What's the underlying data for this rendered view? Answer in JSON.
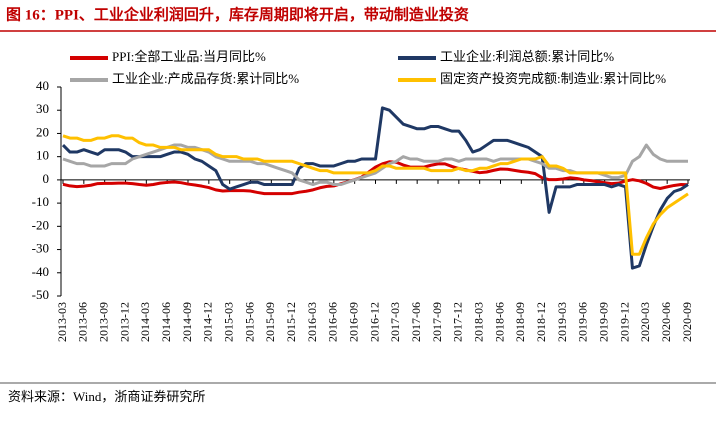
{
  "chart_data": {
    "type": "line",
    "title": "图 16：PPI、工业企业利润回升，库存周期即将开启，带动制造业投资",
    "source": "资料来源：Wind，浙商证券研究所",
    "categories": [
      "2013-03",
      null,
      null,
      "2013-06",
      null,
      null,
      "2013-09",
      null,
      null,
      "2013-12",
      null,
      null,
      "2014-03",
      null,
      null,
      "2014-06",
      null,
      null,
      "2014-09",
      null,
      null,
      "2014-12",
      null,
      null,
      "2015-03",
      null,
      null,
      "2015-06",
      null,
      null,
      "2015-09",
      null,
      null,
      "2015-12",
      null,
      null,
      "2016-03",
      null,
      null,
      "2016-06",
      null,
      null,
      "2016-09",
      null,
      null,
      "2016-12",
      null,
      null,
      "2017-03",
      null,
      null,
      "2017-06",
      null,
      null,
      "2017-09",
      null,
      null,
      "2017-12",
      null,
      null,
      "2018-03",
      null,
      null,
      "2018-06",
      null,
      null,
      "2018-09",
      null,
      null,
      "2018-12",
      null,
      null,
      "2019-03",
      null,
      null,
      "2019-06",
      null,
      null,
      "2019-09",
      null,
      null,
      "2019-12",
      null,
      null,
      "2020-03",
      null,
      null,
      "2020-06",
      null,
      null,
      "2020-09"
    ],
    "series": [
      {
        "name": "PPI:全部工业品:当月同比%",
        "color": "#d40000",
        "values": [
          -1.9,
          -2.6,
          -2.9,
          -2.7,
          -2.3,
          -1.6,
          -1.5,
          -1.5,
          -1.4,
          -1.4,
          -1.6,
          -2.0,
          -2.3,
          -2.0,
          -1.4,
          -1.1,
          -0.9,
          -1.2,
          -1.8,
          -2.2,
          -2.7,
          -3.3,
          -4.3,
          -4.8,
          -4.6,
          -4.6,
          -4.6,
          -4.8,
          -5.4,
          -5.9,
          -5.9,
          -5.9,
          -5.9,
          -5.9,
          -5.3,
          -4.9,
          -4.3,
          -3.4,
          -2.8,
          -2.6,
          -1.7,
          -0.8,
          0.1,
          1.2,
          3.3,
          5.5,
          6.9,
          7.8,
          7.6,
          6.4,
          5.5,
          5.5,
          5.5,
          6.3,
          6.9,
          6.9,
          5.8,
          4.9,
          4.3,
          3.7,
          3.1,
          3.4,
          4.1,
          4.7,
          4.6,
          4.1,
          3.6,
          3.3,
          2.7,
          0.9,
          0.1,
          0.1,
          0.4,
          0.9,
          0.6,
          0.0,
          -0.3,
          -0.8,
          -1.2,
          -1.6,
          -1.4,
          -0.5,
          0.1,
          -0.4,
          -1.5,
          -3.1,
          -3.7,
          -3.0,
          -2.4,
          -2.0,
          -2.1
        ]
      },
      {
        "name": "工业企业:利润总额:累计同比%",
        "color": "#1f3864",
        "values": [
          15,
          12,
          12,
          13,
          12,
          11,
          13,
          13,
          13,
          12,
          10,
          10,
          10,
          10,
          10,
          11,
          12,
          12,
          11,
          9,
          8,
          6,
          4,
          -2,
          -4,
          -3,
          -2,
          -1,
          -1,
          -2,
          -2,
          -2,
          -2,
          -2,
          5,
          7,
          7,
          6,
          6,
          6,
          7,
          8,
          8,
          9,
          9,
          9,
          31,
          30,
          27,
          24,
          23,
          22,
          22,
          23,
          23,
          22,
          21,
          21,
          17,
          12,
          13,
          15,
          17,
          17,
          17,
          16,
          15,
          14,
          12,
          10,
          -14,
          -3,
          -3,
          -3,
          -2,
          -2,
          -2,
          -2,
          -2,
          -3,
          -2,
          -3,
          -38,
          -37,
          -28,
          -20,
          -13,
          -8,
          -5,
          -4,
          -2
        ]
      },
      {
        "name": "工业企业:产成品存货:累计同比%",
        "color": "#a6a6a6",
        "values": [
          9,
          8,
          7,
          7,
          6,
          6,
          6,
          7,
          7,
          7,
          9,
          10,
          11,
          12,
          13,
          14,
          15,
          15,
          14,
          14,
          13,
          12,
          10,
          9,
          8,
          8,
          8,
          8,
          7,
          7,
          6,
          5,
          4,
          3,
          0,
          -1,
          -2,
          -1,
          -1,
          -2,
          -2,
          -1,
          0,
          1,
          2,
          3,
          5,
          7,
          8,
          10,
          9,
          9,
          8,
          8,
          8,
          9,
          9,
          8,
          9,
          9,
          9,
          9,
          8,
          9,
          9,
          9,
          9,
          9,
          8,
          7,
          5,
          5,
          4,
          4,
          3,
          3,
          3,
          3,
          2,
          1,
          1,
          2,
          8,
          10,
          15,
          11,
          9,
          8,
          8,
          8,
          8
        ]
      },
      {
        "name": "固定资产投资完成额:制造业:累计同比%",
        "color": "#ffc000",
        "values": [
          19,
          18,
          18,
          17,
          17,
          18,
          18,
          19,
          19,
          18,
          18,
          16,
          15,
          15,
          14,
          14,
          14,
          13,
          13,
          13,
          13,
          13,
          11,
          10,
          10,
          10,
          9,
          9,
          9,
          8,
          8,
          8,
          8,
          8,
          7,
          6,
          5,
          4,
          4,
          3,
          3,
          3,
          3,
          3,
          3,
          4,
          6,
          6,
          5,
          5,
          5,
          5,
          5,
          4,
          4,
          4,
          4,
          5,
          4,
          4,
          5,
          5,
          6,
          7,
          7,
          8,
          9,
          9,
          9,
          10,
          6,
          6,
          5,
          3,
          3,
          3,
          3,
          3,
          3,
          3,
          3,
          3,
          -32,
          -32,
          -25,
          -19,
          -15,
          -12,
          -10,
          -8,
          -6
        ]
      }
    ],
    "ylim": [
      -50,
      40
    ],
    "yticks": [
      -50,
      -40,
      -30,
      -20,
      -10,
      0,
      10,
      20,
      30,
      40
    ],
    "grid": false
  }
}
